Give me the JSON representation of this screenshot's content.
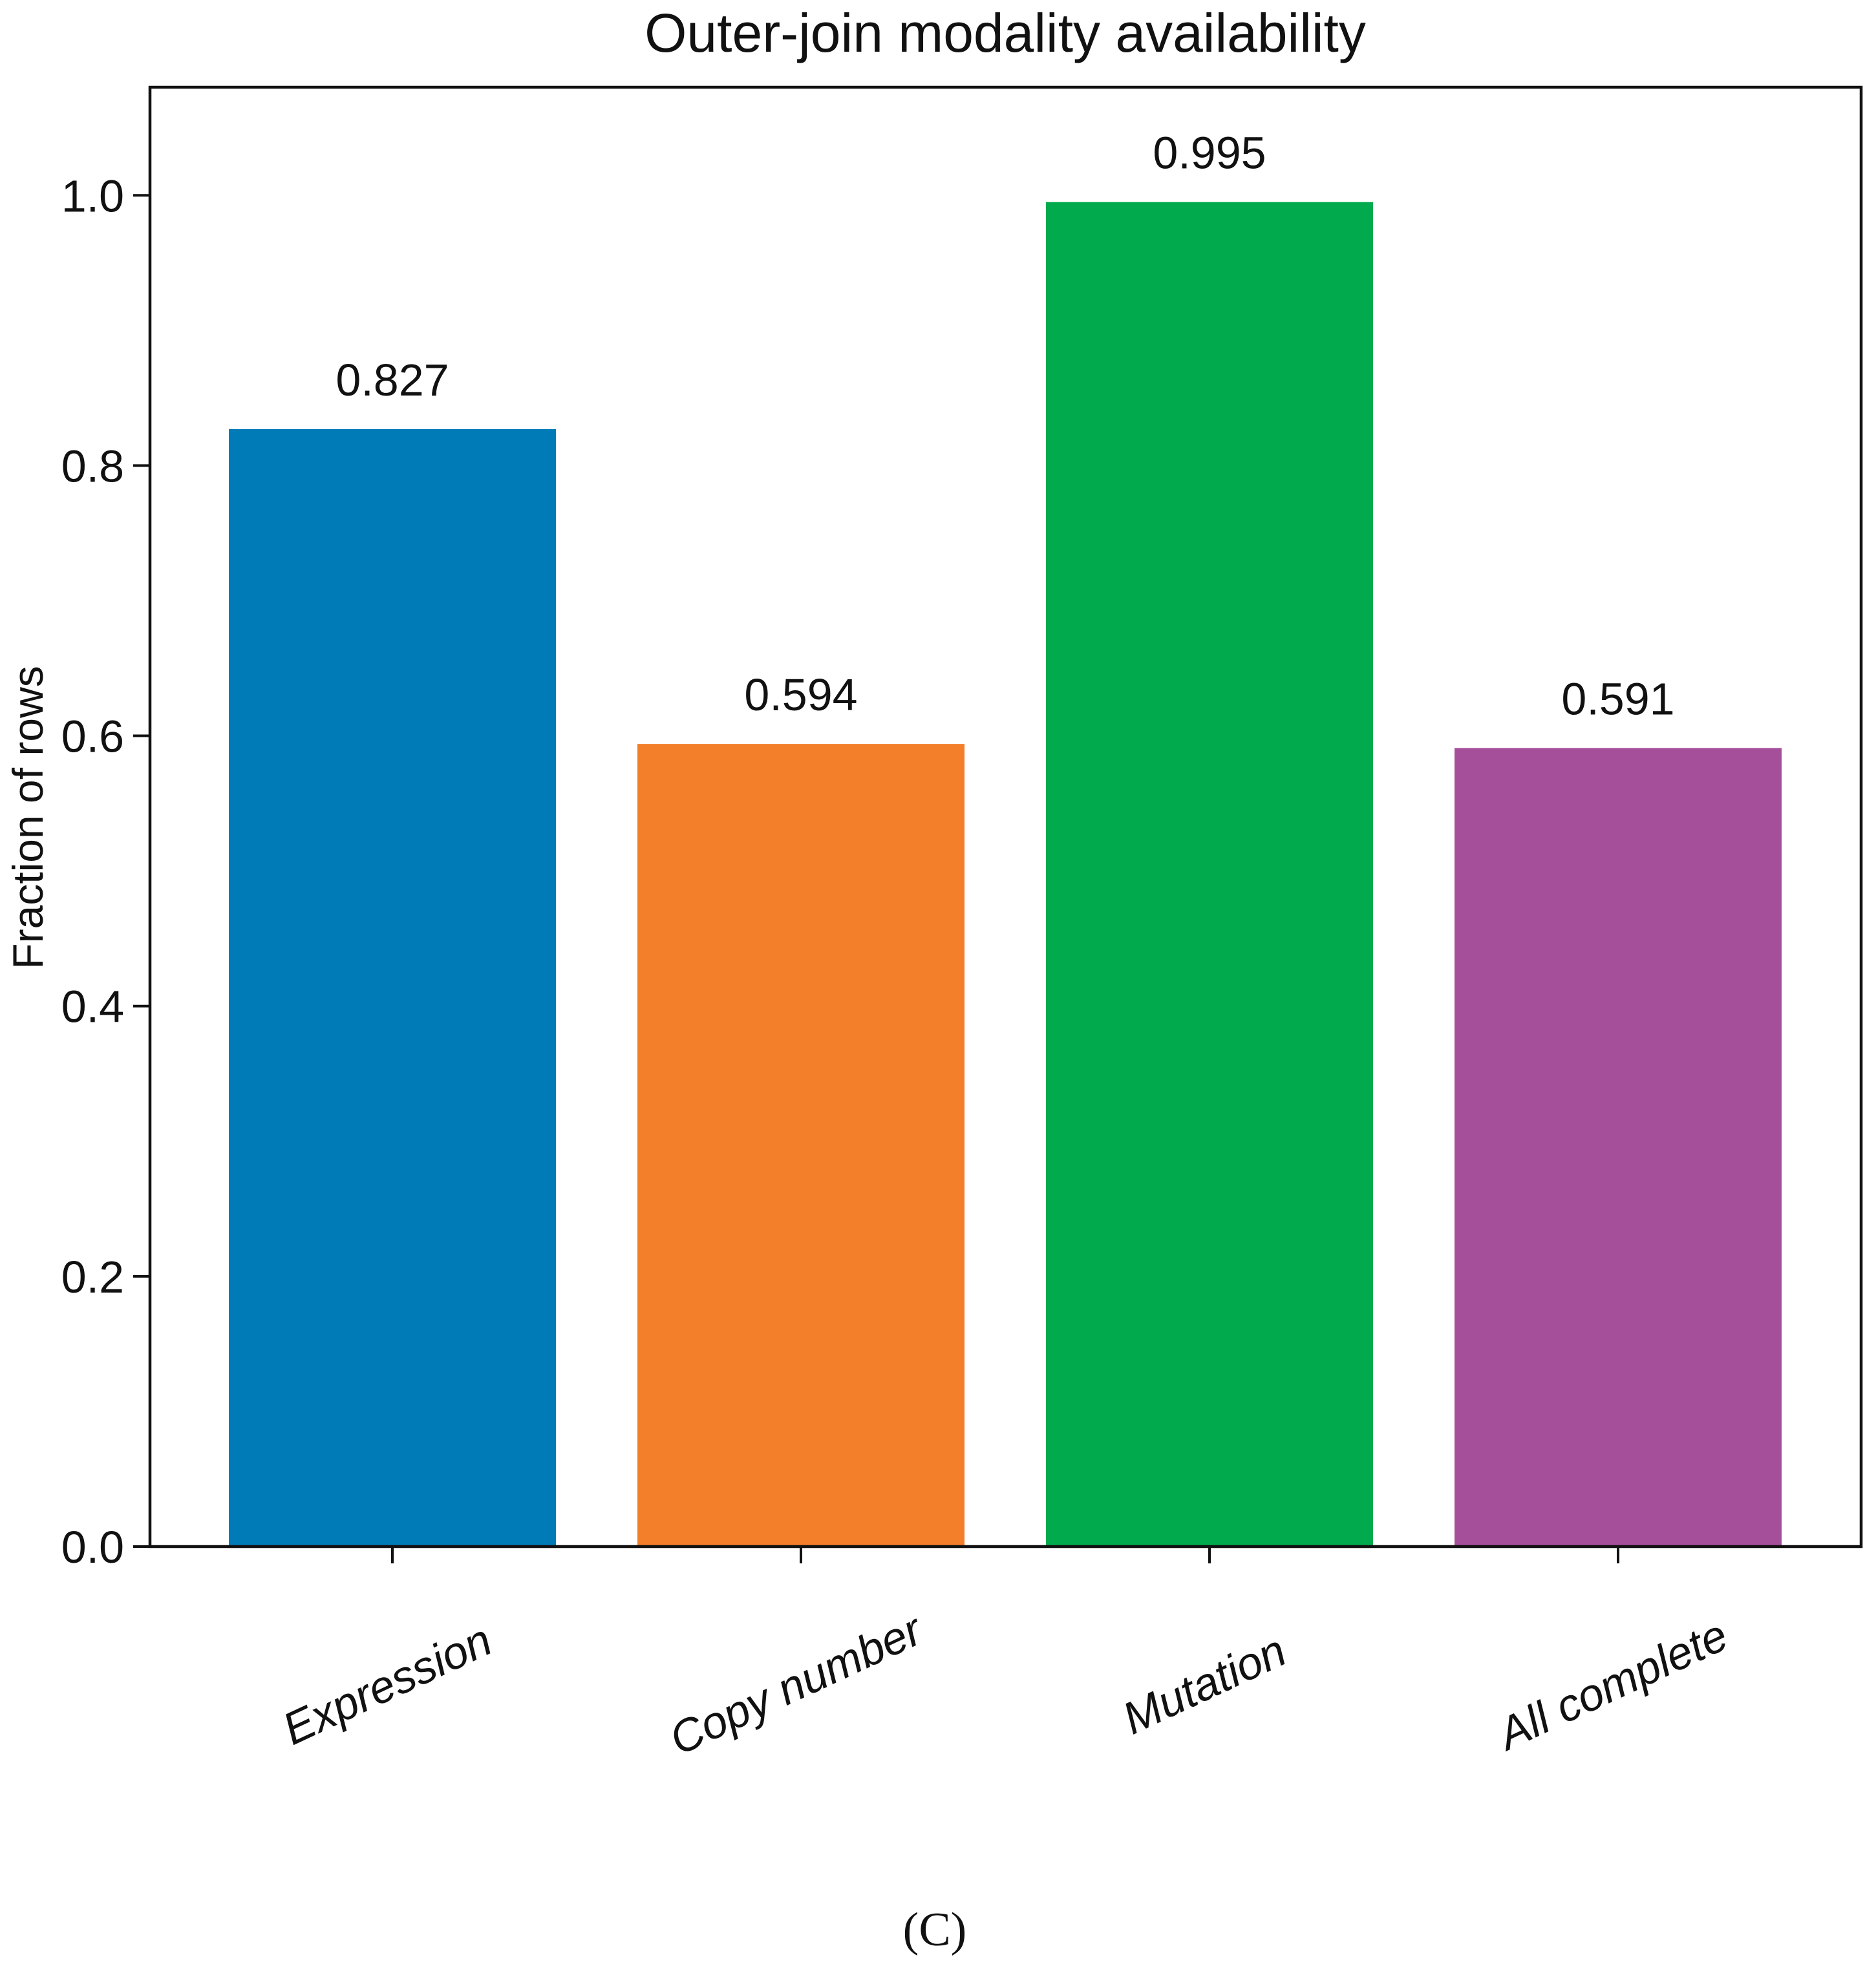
{
  "chart_data": {
    "type": "bar",
    "title": "Outer-join modality availability",
    "xlabel": "",
    "ylabel": "Fraction of rows",
    "categories": [
      "Expression",
      "Copy number",
      "Mutation",
      "All complete"
    ],
    "values": [
      0.827,
      0.594,
      0.995,
      0.591
    ],
    "value_labels": [
      "0.827",
      "0.594",
      "0.995",
      "0.591"
    ],
    "colors": [
      "#007bb8",
      "#f47f2b",
      "#00aa4d",
      "#a54f9b"
    ],
    "ylim": [
      0,
      1.08
    ],
    "yticks": [
      0.0,
      0.2,
      0.4,
      0.6,
      0.8,
      1.0
    ],
    "ytick_labels": [
      "0.0",
      "0.2",
      "0.4",
      "0.6",
      "0.8",
      "1.0"
    ],
    "grid": false,
    "legend": "none"
  },
  "caption": "(C)"
}
